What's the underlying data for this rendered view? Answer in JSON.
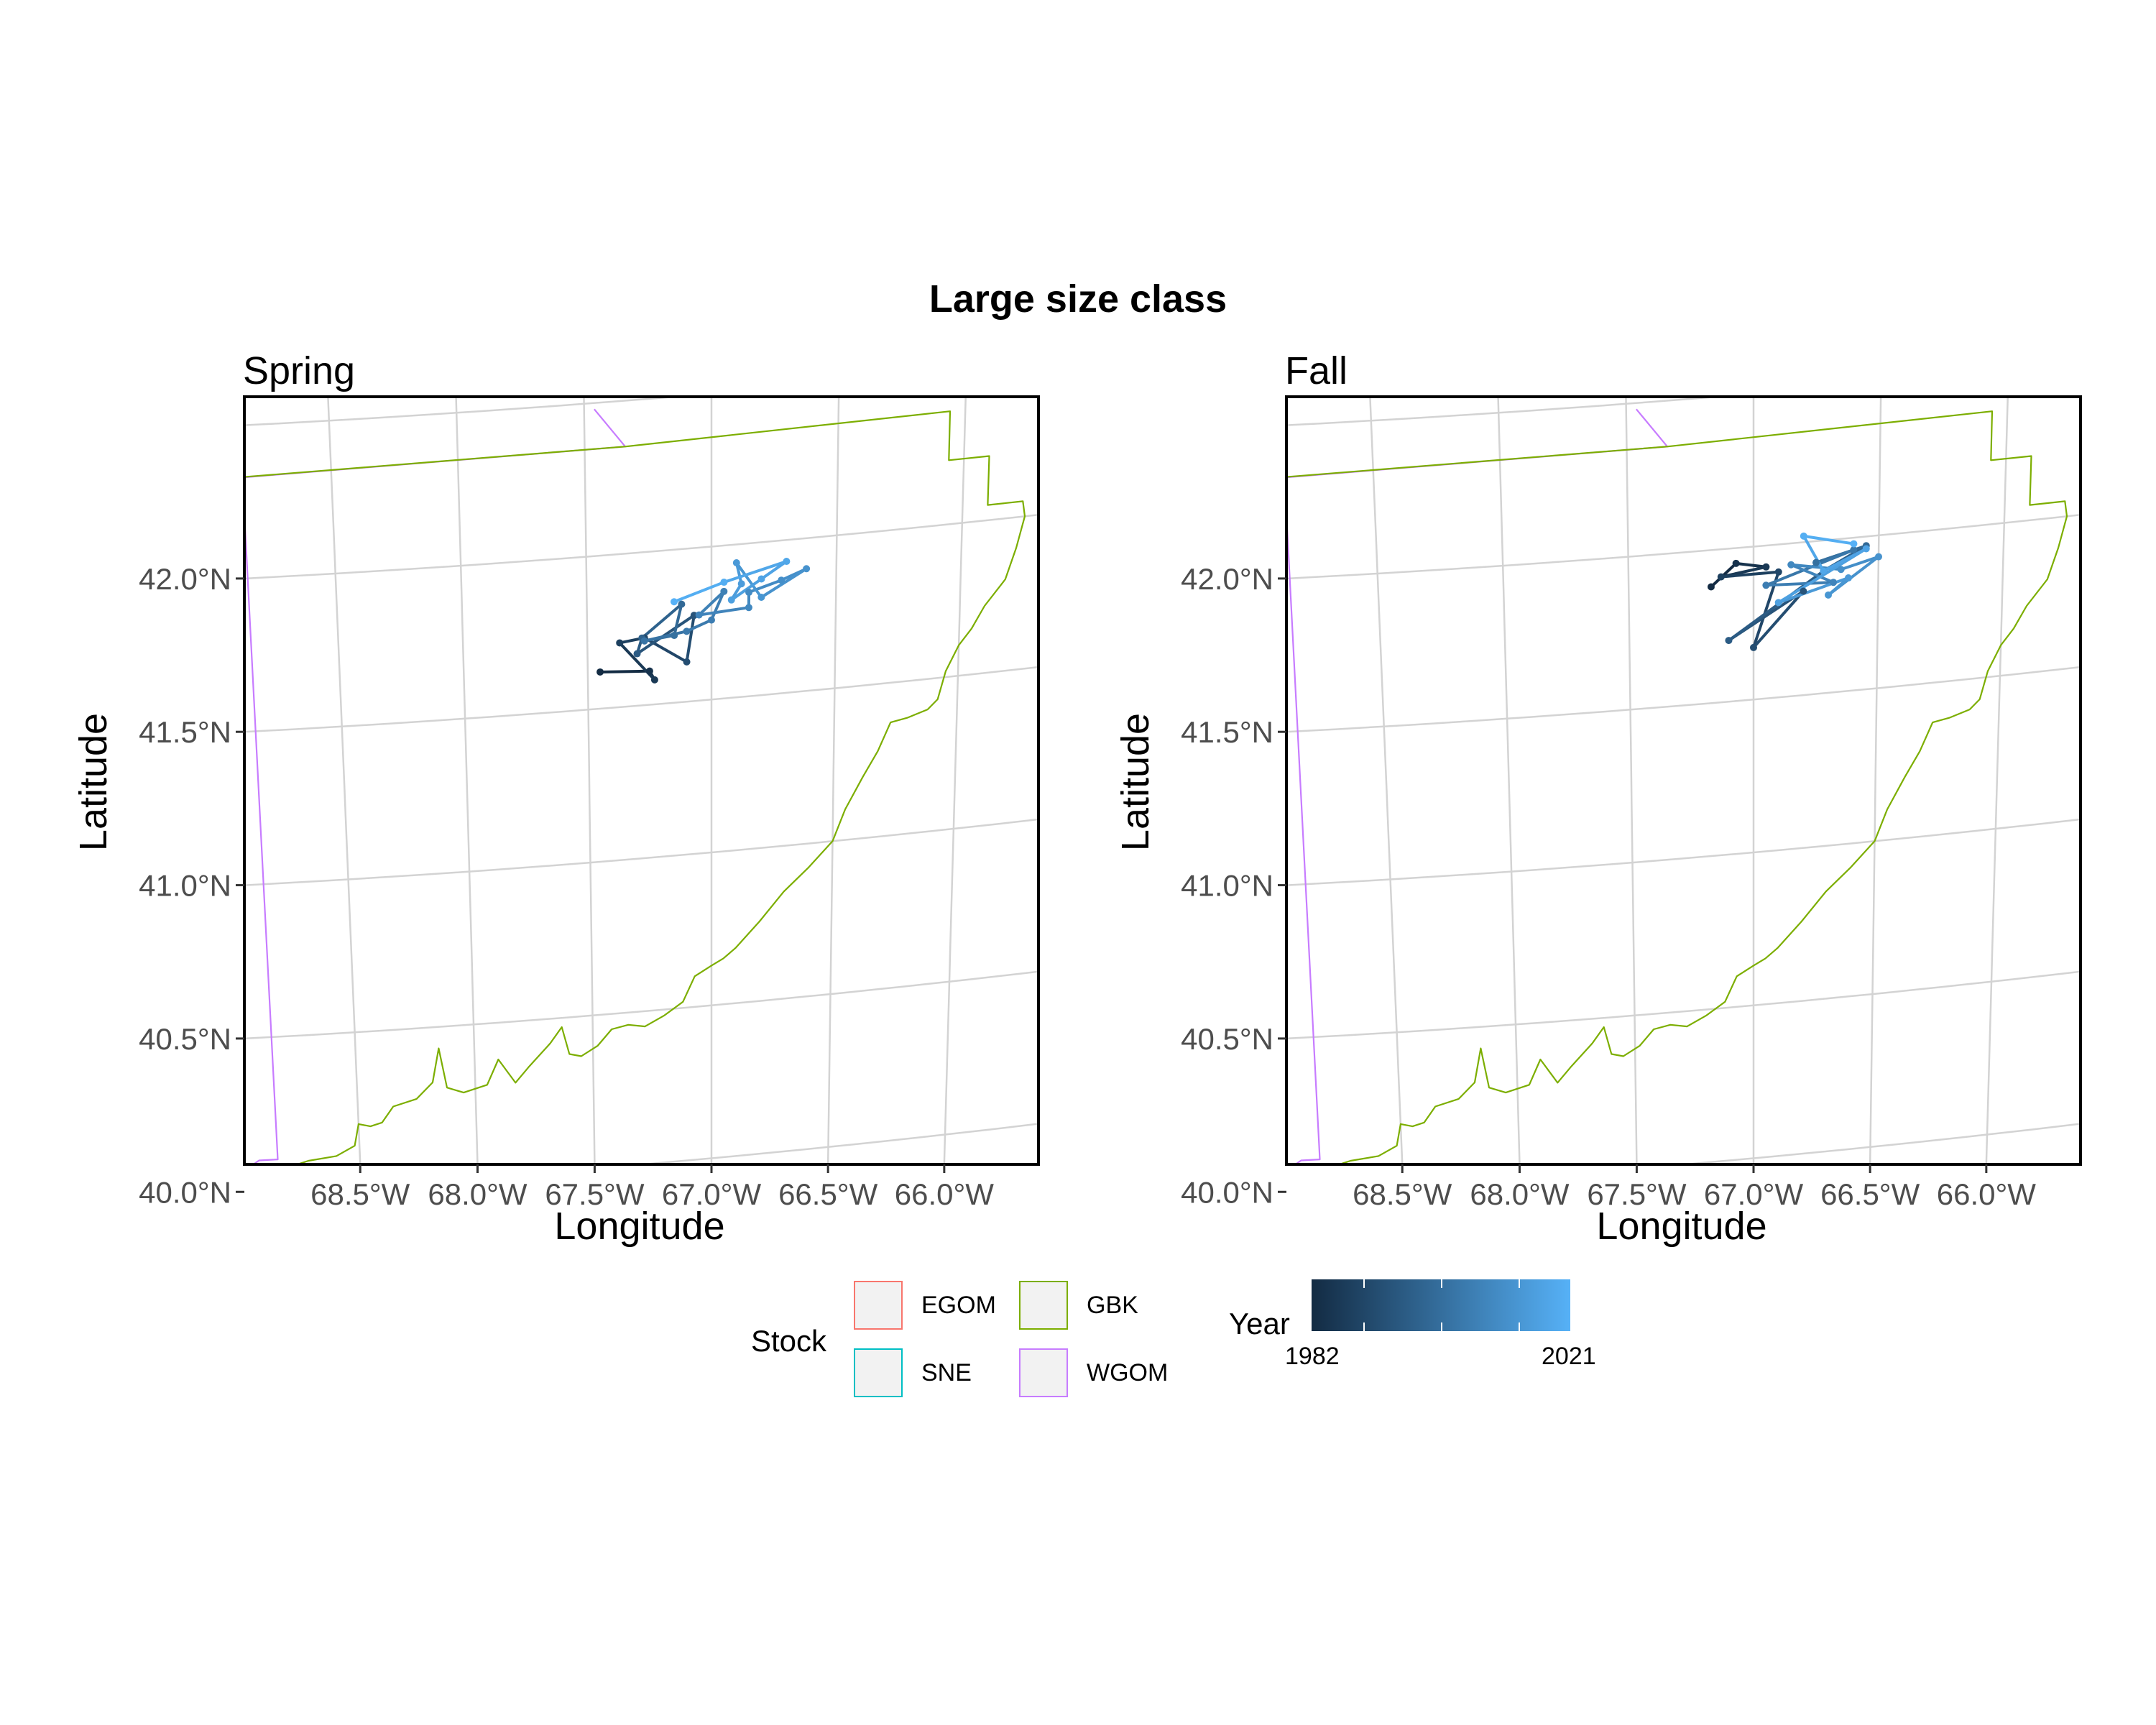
{
  "title": "Large size class",
  "chart_data": [
    {
      "type": "line",
      "panel": "Spring",
      "xlabel": "Longitude",
      "ylabel": "Latitude",
      "x_ticks": [
        "68.5°W",
        "68.0°W",
        "67.5°W",
        "67.0°W",
        "66.5°W",
        "66.0°W"
      ],
      "y_ticks": [
        "40.0°N",
        "40.5°N",
        "41.0°N",
        "41.5°N",
        "42.0°N"
      ],
      "x_tick_values": [
        -68.5,
        -68.0,
        -67.5,
        -67.0,
        -66.5,
        -66.0
      ],
      "y_tick_values": [
        40.0,
        40.5,
        41.0,
        41.5,
        42.0
      ],
      "xlim": [
        -69.0,
        -65.6
      ],
      "ylim": [
        39.99,
        42.48
      ],
      "grid": true,
      "series": [
        {
          "lon": [
            -67.45,
            -67.25,
            -67.23,
            -67.37,
            -67.27,
            -67.1,
            -67.07,
            -67.3,
            -67.28,
            -67.12,
            -67.15,
            -67.27,
            -67.1,
            -67.0,
            -66.95,
            -67.05,
            -66.85,
            -66.85,
            -66.72,
            -66.62,
            -66.8,
            -66.9,
            -66.88,
            -66.92,
            -66.8,
            -66.7,
            -66.95,
            -67.15
          ],
          "lat": [
            41.62,
            41.61,
            41.58,
            41.71,
            41.72,
            41.63,
            41.78,
            41.67,
            41.72,
            41.82,
            41.72,
            41.71,
            41.73,
            41.76,
            41.85,
            41.78,
            41.79,
            41.84,
            41.87,
            41.9,
            41.82,
            41.94,
            41.87,
            41.82,
            41.88,
            41.93,
            41.88,
            41.83
          ],
          "year": [
            1982,
            1984,
            1986,
            1988,
            1990,
            1992,
            1994,
            1996,
            1998,
            2000,
            2002,
            2003,
            2005,
            2006,
            2007,
            2008,
            2009,
            2010,
            2011,
            2012,
            2013,
            2014,
            2015,
            2016,
            2017,
            2018,
            2020,
            2021
          ]
        }
      ]
    },
    {
      "type": "line",
      "panel": "Fall",
      "xlabel": "Longitude",
      "ylabel": "Latitude",
      "x_ticks": [
        "68.5°W",
        "68.0°W",
        "67.5°W",
        "67.0°W",
        "66.5°W",
        "66.0°W"
      ],
      "y_ticks": [
        "40.0°N",
        "40.5°N",
        "41.0°N",
        "41.5°N",
        "42.0°N"
      ],
      "x_tick_values": [
        -68.5,
        -68.0,
        -67.5,
        -67.0,
        -66.5,
        -66.0
      ],
      "y_tick_values": [
        40.0,
        40.5,
        41.0,
        41.5,
        42.0
      ],
      "xlim": [
        -69.0,
        -65.6
      ],
      "ylim": [
        39.99,
        42.48
      ],
      "grid": true,
      "series": [
        {
          "lon": [
            -67.17,
            -67.07,
            -66.95,
            -67.13,
            -66.9,
            -67.0,
            -66.8,
            -67.1,
            -66.72,
            -66.55,
            -66.75,
            -66.6,
            -66.95,
            -66.68,
            -66.85,
            -66.65,
            -66.5,
            -66.7,
            -66.62,
            -66.9,
            -66.55,
            -66.72,
            -66.8,
            -66.6
          ],
          "lat": [
            41.88,
            41.95,
            41.93,
            41.91,
            41.91,
            41.67,
            41.84,
            41.7,
            41.9,
            41.97,
            41.93,
            41.96,
            41.87,
            41.86,
            41.93,
            41.9,
            41.93,
            41.82,
            41.87,
            41.81,
            41.96,
            41.9,
            42.02,
            41.98
          ],
          "year": [
            1982,
            1984,
            1986,
            1988,
            1990,
            1992,
            1994,
            1996,
            1998,
            2000,
            2002,
            2004,
            2006,
            2008,
            2009,
            2011,
            2012,
            2013,
            2014,
            2016,
            2017,
            2018,
            2020,
            2021
          ]
        }
      ]
    }
  ],
  "stock_legend": {
    "title": "Stock",
    "items": [
      {
        "label": "EGOM",
        "color": "#F8766D"
      },
      {
        "label": "GBK",
        "color": "#7CAE00"
      },
      {
        "label": "SNE",
        "color": "#00BFC4"
      },
      {
        "label": "WGOM",
        "color": "#C77CFF"
      }
    ]
  },
  "year_legend": {
    "title": "Year",
    "min_label": "1982",
    "max_label": "2021",
    "low_color": "#132B43",
    "high_color": "#56B1F7"
  }
}
